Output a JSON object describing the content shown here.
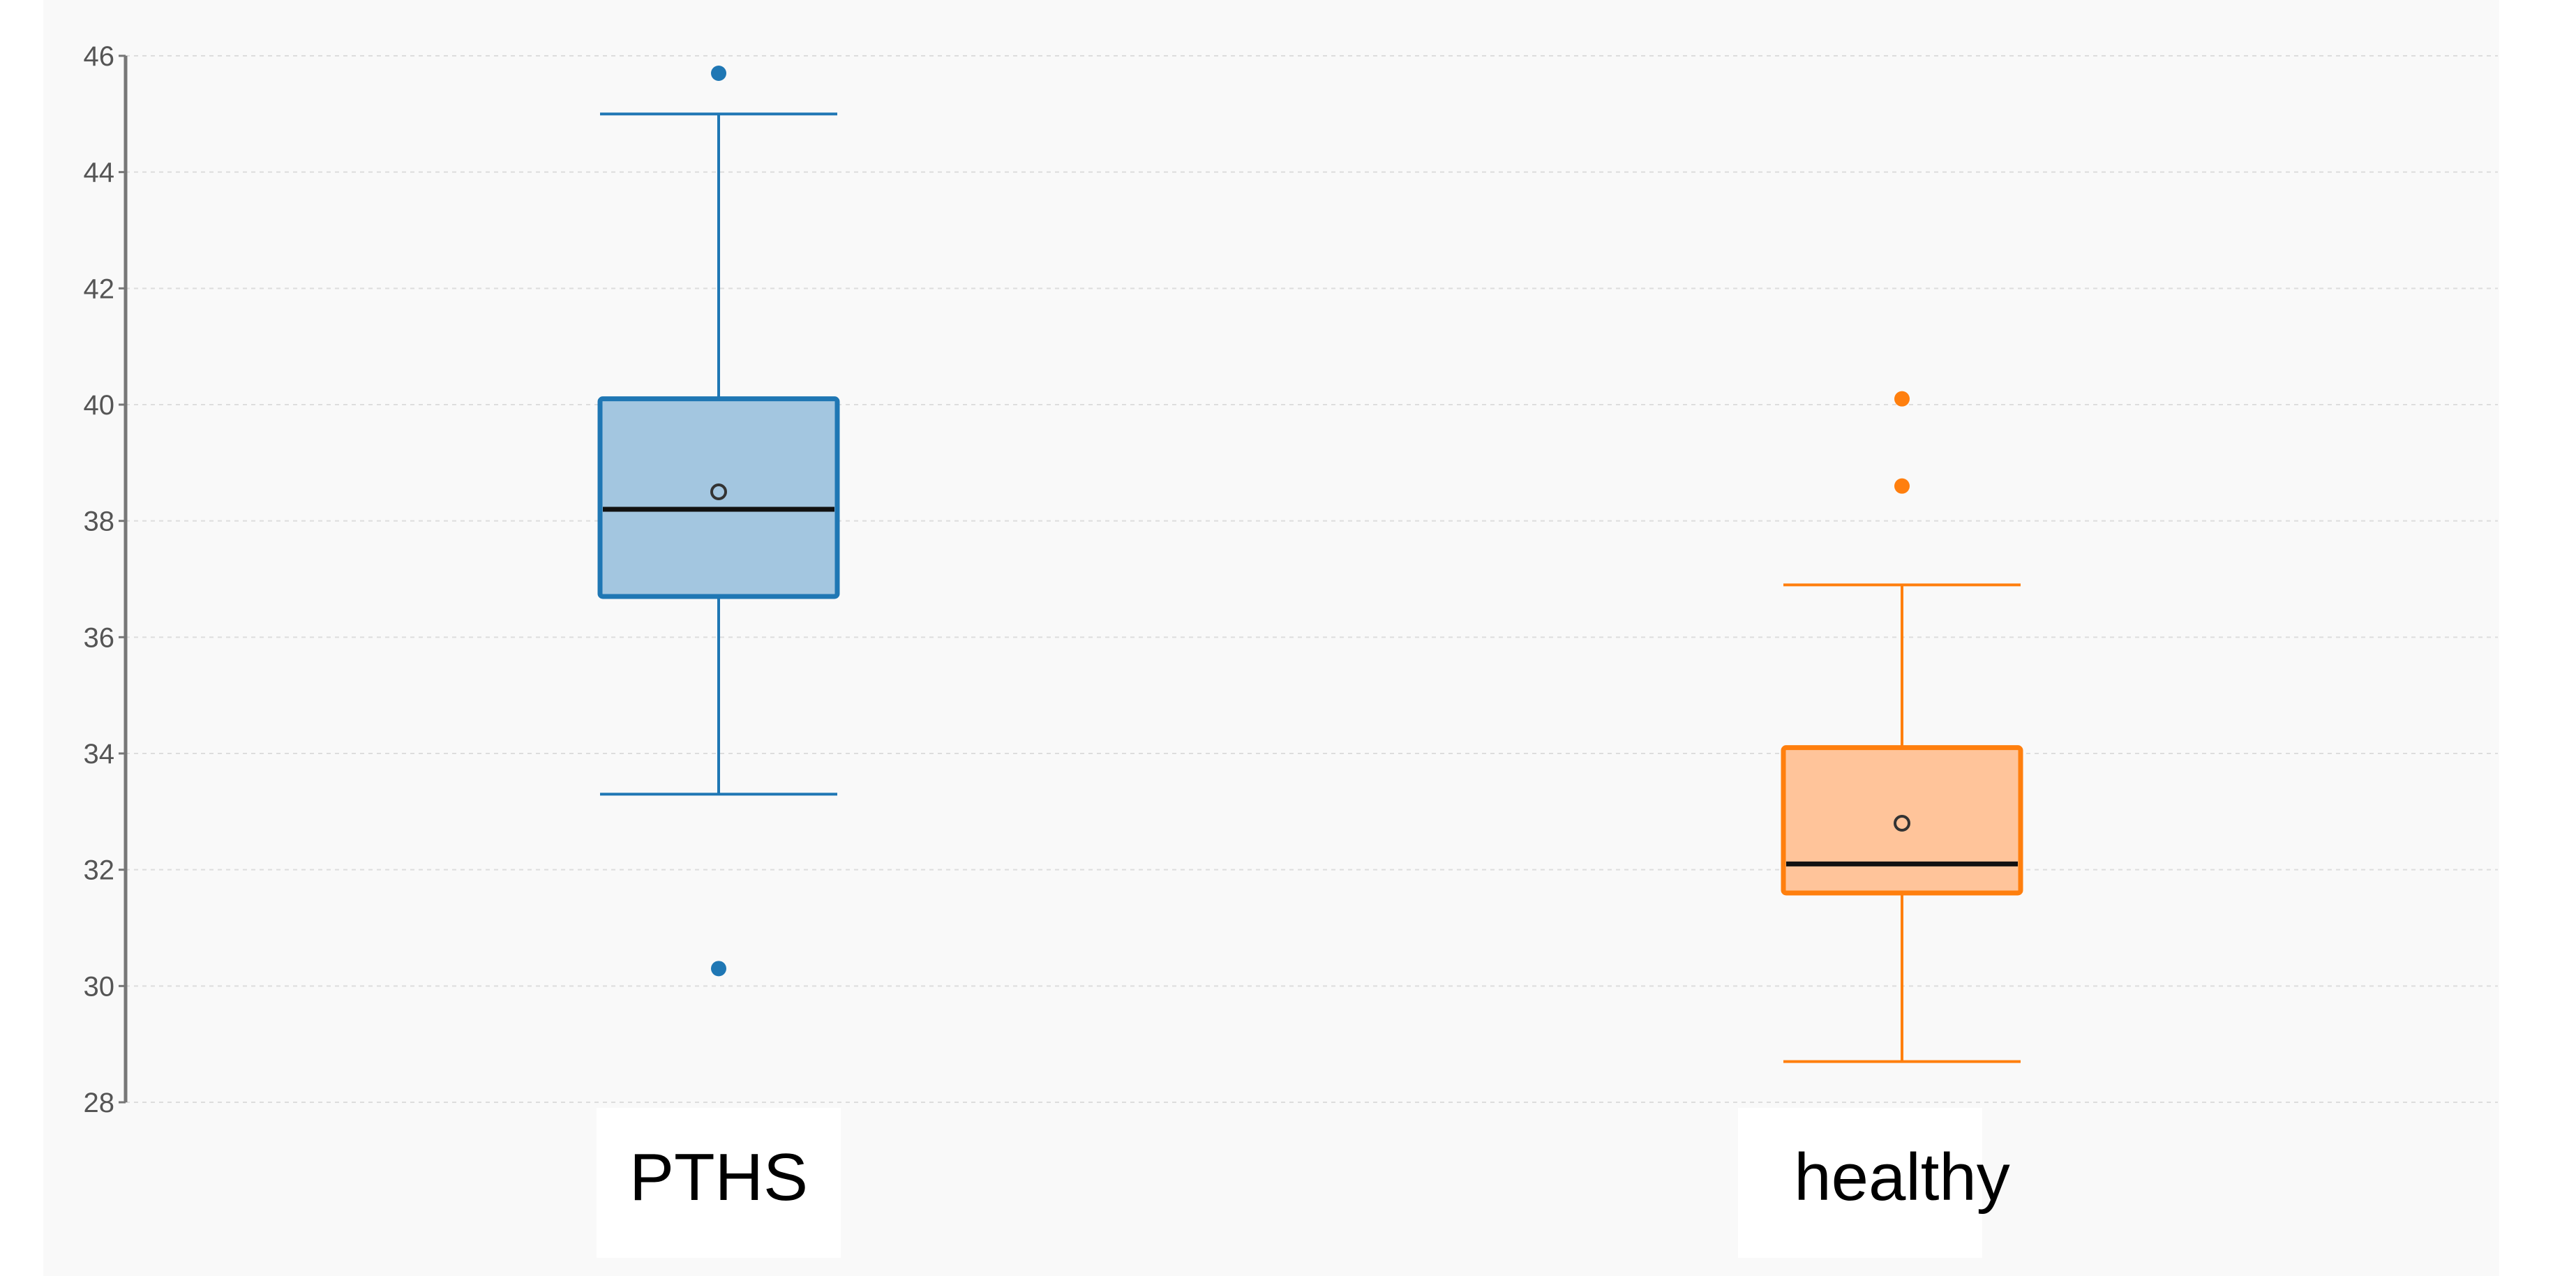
{
  "chart_data": {
    "type": "box",
    "title": "",
    "xlabel": "",
    "ylabel": "",
    "ylim": [
      28,
      46
    ],
    "yticks": [
      28,
      30,
      32,
      34,
      36,
      38,
      40,
      42,
      44,
      46
    ],
    "ytick_labels": [
      "28",
      "30",
      "32",
      "34",
      "36",
      "38",
      "40",
      "42",
      "44",
      "46"
    ],
    "grid": true,
    "legend": "none",
    "categories": [
      "PTHS",
      "healthy"
    ],
    "boxes": [
      {
        "category": "PTHS",
        "whisker_low": 33.3,
        "q1": 36.7,
        "median": 38.2,
        "mean": 38.5,
        "q3": 40.1,
        "whisker_high": 45.0,
        "outliers": [
          45.7,
          30.3
        ],
        "color": "#1f77b4",
        "fill": "#a3c6e0"
      },
      {
        "category": "healthy",
        "whisker_low": 28.7,
        "q1": 31.6,
        "median": 32.1,
        "mean": 32.8,
        "q3": 34.1,
        "whisker_high": 36.9,
        "outliers": [
          40.1,
          38.6
        ],
        "color": "#ff7f0e",
        "fill": "#ffc49a"
      }
    ]
  }
}
